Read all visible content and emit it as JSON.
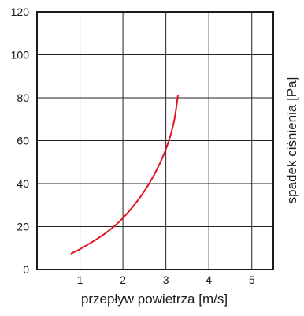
{
  "chart_data": {
    "type": "line",
    "title": "",
    "xlabel": "przepływ powietrza [m/s]",
    "ylabel": "spadek ciśnienia [Pa]",
    "xlim": [
      0,
      5.5
    ],
    "ylim": [
      0,
      120
    ],
    "x_ticks": [
      1,
      2,
      3,
      4,
      5
    ],
    "x_tick_labels": [
      "1",
      "2",
      "3",
      "4",
      "5"
    ],
    "y_ticks": [
      0,
      20,
      40,
      60,
      80,
      100,
      120
    ],
    "y_tick_labels": [
      "0",
      "20",
      "40",
      "60",
      "80",
      "100",
      "120"
    ],
    "grid": true,
    "legend": "none",
    "series": [
      {
        "color": "#e0141e",
        "x": [
          0.8,
          1.0,
          1.3,
          1.6,
          1.9,
          2.2,
          2.5,
          2.75,
          2.95,
          3.1,
          3.2,
          3.28
        ],
        "y": [
          7.5,
          9.5,
          13,
          17,
          22,
          28.5,
          36.5,
          45,
          53.5,
          62,
          70,
          81
        ]
      }
    ]
  }
}
